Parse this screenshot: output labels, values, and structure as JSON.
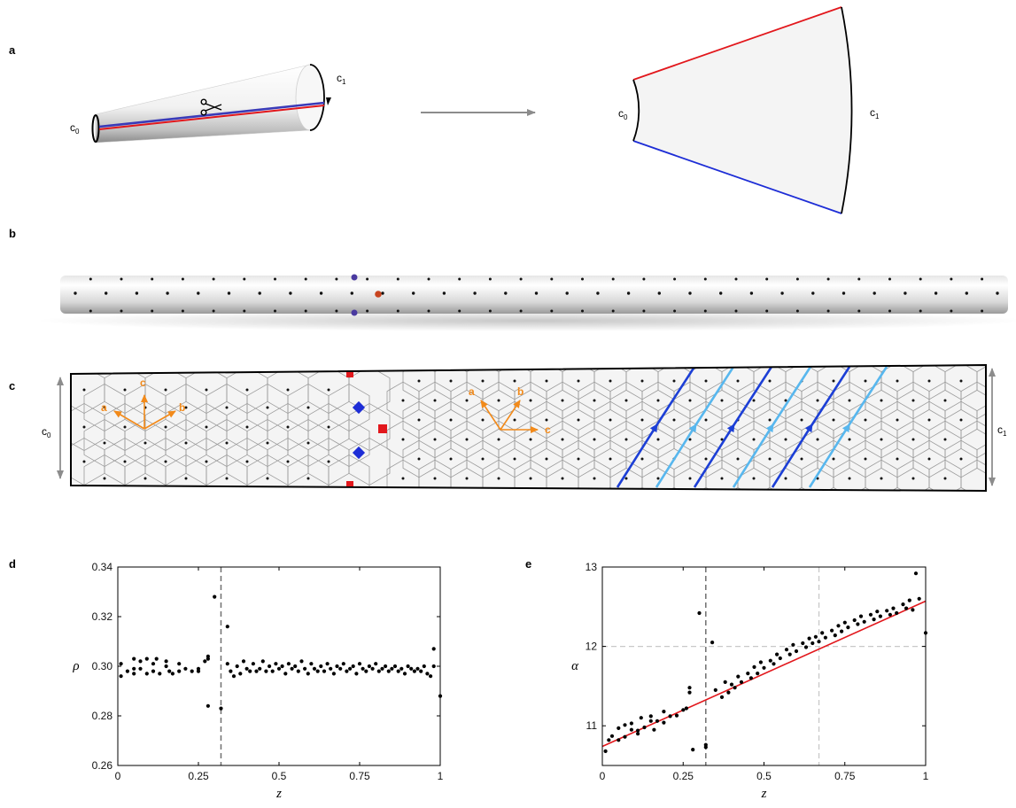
{
  "panel_labels": [
    "a",
    "b",
    "c",
    "d",
    "e"
  ],
  "panel_a": {
    "label_start": "c",
    "label_end": "c",
    "sub_start": "0",
    "sub_end": "1"
  },
  "panel_c": {
    "c0_base": "c",
    "c0_sub": "0",
    "c1_base": "c",
    "c1_sub": "1",
    "lattice_vectors_left": [
      "a",
      "b",
      "c"
    ],
    "lattice_vectors_right": [
      "a",
      "b",
      "c"
    ],
    "colors": {
      "orange": "#f28a1a",
      "dark_blue": "#1c3fd6",
      "light_blue": "#58b7ee",
      "defect_red": "#e2171c",
      "defect_blue": "#1d2dd6"
    }
  },
  "chart_data": [
    {
      "type": "scatter",
      "panel": "d",
      "xlabel": "z",
      "ylabel": "ρ",
      "xlim": [
        0,
        1
      ],
      "ylim": [
        0.26,
        0.34
      ],
      "xticks": [
        "0",
        "0.25",
        "0.5",
        "0.75",
        "1"
      ],
      "yticks": [
        "0.26",
        "0.28",
        "0.30",
        "0.32",
        "0.34"
      ],
      "vline": 0.32,
      "points": [
        [
          0.01,
          0.301
        ],
        [
          0.01,
          0.296
        ],
        [
          0.03,
          0.298
        ],
        [
          0.05,
          0.303
        ],
        [
          0.05,
          0.299
        ],
        [
          0.05,
          0.297
        ],
        [
          0.07,
          0.302
        ],
        [
          0.07,
          0.299
        ],
        [
          0.09,
          0.303
        ],
        [
          0.09,
          0.297
        ],
        [
          0.11,
          0.301
        ],
        [
          0.11,
          0.298
        ],
        [
          0.12,
          0.303
        ],
        [
          0.13,
          0.297
        ],
        [
          0.15,
          0.302
        ],
        [
          0.15,
          0.3
        ],
        [
          0.16,
          0.298
        ],
        [
          0.17,
          0.297
        ],
        [
          0.19,
          0.301
        ],
        [
          0.19,
          0.298
        ],
        [
          0.21,
          0.299
        ],
        [
          0.23,
          0.298
        ],
        [
          0.25,
          0.299
        ],
        [
          0.25,
          0.298
        ],
        [
          0.27,
          0.302
        ],
        [
          0.28,
          0.304
        ],
        [
          0.28,
          0.303
        ],
        [
          0.28,
          0.284
        ],
        [
          0.3,
          0.328
        ],
        [
          0.32,
          0.283
        ],
        [
          0.34,
          0.316
        ],
        [
          0.34,
          0.301
        ],
        [
          0.35,
          0.298
        ],
        [
          0.36,
          0.296
        ],
        [
          0.37,
          0.3
        ],
        [
          0.38,
          0.297
        ],
        [
          0.39,
          0.302
        ],
        [
          0.4,
          0.299
        ],
        [
          0.41,
          0.298
        ],
        [
          0.42,
          0.301
        ],
        [
          0.43,
          0.298
        ],
        [
          0.44,
          0.299
        ],
        [
          0.45,
          0.302
        ],
        [
          0.46,
          0.298
        ],
        [
          0.47,
          0.3
        ],
        [
          0.48,
          0.298
        ],
        [
          0.49,
          0.301
        ],
        [
          0.5,
          0.299
        ],
        [
          0.51,
          0.3
        ],
        [
          0.52,
          0.297
        ],
        [
          0.53,
          0.301
        ],
        [
          0.54,
          0.299
        ],
        [
          0.55,
          0.3
        ],
        [
          0.56,
          0.298
        ],
        [
          0.57,
          0.302
        ],
        [
          0.58,
          0.299
        ],
        [
          0.59,
          0.297
        ],
        [
          0.6,
          0.301
        ],
        [
          0.61,
          0.299
        ],
        [
          0.62,
          0.298
        ],
        [
          0.63,
          0.3
        ],
        [
          0.64,
          0.298
        ],
        [
          0.65,
          0.301
        ],
        [
          0.66,
          0.299
        ],
        [
          0.67,
          0.297
        ],
        [
          0.68,
          0.3
        ],
        [
          0.69,
          0.299
        ],
        [
          0.7,
          0.301
        ],
        [
          0.71,
          0.298
        ],
        [
          0.72,
          0.299
        ],
        [
          0.73,
          0.3
        ],
        [
          0.74,
          0.297
        ],
        [
          0.75,
          0.301
        ],
        [
          0.76,
          0.299
        ],
        [
          0.77,
          0.298
        ],
        [
          0.78,
          0.3
        ],
        [
          0.79,
          0.299
        ],
        [
          0.8,
          0.301
        ],
        [
          0.81,
          0.298
        ],
        [
          0.82,
          0.299
        ],
        [
          0.83,
          0.3
        ],
        [
          0.84,
          0.298
        ],
        [
          0.85,
          0.299
        ],
        [
          0.86,
          0.3
        ],
        [
          0.87,
          0.298
        ],
        [
          0.88,
          0.299
        ],
        [
          0.89,
          0.297
        ],
        [
          0.9,
          0.3
        ],
        [
          0.91,
          0.299
        ],
        [
          0.92,
          0.298
        ],
        [
          0.93,
          0.299
        ],
        [
          0.94,
          0.298
        ],
        [
          0.95,
          0.3
        ],
        [
          0.96,
          0.297
        ],
        [
          0.97,
          0.296
        ],
        [
          0.98,
          0.307
        ],
        [
          0.98,
          0.3
        ],
        [
          1.0,
          0.288
        ]
      ]
    },
    {
      "type": "scatter",
      "panel": "e",
      "xlabel": "z",
      "ylabel": "α",
      "xlim": [
        0,
        1
      ],
      "ylim": [
        10.5,
        13
      ],
      "xticks": [
        "0",
        "0.25",
        "0.5",
        "0.75",
        "1"
      ],
      "yticks": [
        "11",
        "12",
        "13"
      ],
      "vline": 0.32,
      "vline_light": 0.67,
      "hline_light": 12.0,
      "fit_line": [
        [
          0,
          10.74
        ],
        [
          1,
          12.57
        ]
      ],
      "points": [
        [
          0.01,
          10.68
        ],
        [
          0.02,
          10.82
        ],
        [
          0.03,
          10.87
        ],
        [
          0.05,
          10.82
        ],
        [
          0.05,
          10.97
        ],
        [
          0.07,
          10.86
        ],
        [
          0.07,
          11.01
        ],
        [
          0.09,
          10.95
        ],
        [
          0.09,
          11.03
        ],
        [
          0.11,
          10.9
        ],
        [
          0.11,
          10.94
        ],
        [
          0.12,
          11.1
        ],
        [
          0.13,
          10.98
        ],
        [
          0.15,
          11.12
        ],
        [
          0.15,
          11.06
        ],
        [
          0.16,
          10.95
        ],
        [
          0.17,
          11.06
        ],
        [
          0.19,
          11.18
        ],
        [
          0.19,
          11.04
        ],
        [
          0.21,
          11.12
        ],
        [
          0.23,
          11.13
        ],
        [
          0.25,
          11.2
        ],
        [
          0.26,
          11.22
        ],
        [
          0.27,
          11.48
        ],
        [
          0.27,
          11.42
        ],
        [
          0.28,
          10.7
        ],
        [
          0.3,
          12.42
        ],
        [
          0.32,
          10.76
        ],
        [
          0.32,
          10.73
        ],
        [
          0.34,
          12.05
        ],
        [
          0.35,
          11.45
        ],
        [
          0.37,
          11.36
        ],
        [
          0.38,
          11.55
        ],
        [
          0.39,
          11.42
        ],
        [
          0.4,
          11.52
        ],
        [
          0.41,
          11.48
        ],
        [
          0.42,
          11.62
        ],
        [
          0.43,
          11.55
        ],
        [
          0.45,
          11.66
        ],
        [
          0.46,
          11.6
        ],
        [
          0.47,
          11.74
        ],
        [
          0.48,
          11.66
        ],
        [
          0.49,
          11.8
        ],
        [
          0.5,
          11.73
        ],
        [
          0.52,
          11.82
        ],
        [
          0.53,
          11.78
        ],
        [
          0.54,
          11.9
        ],
        [
          0.55,
          11.85
        ],
        [
          0.57,
          11.96
        ],
        [
          0.58,
          11.9
        ],
        [
          0.59,
          12.02
        ],
        [
          0.6,
          11.94
        ],
        [
          0.62,
          12.04
        ],
        [
          0.63,
          11.99
        ],
        [
          0.64,
          12.1
        ],
        [
          0.65,
          12.04
        ],
        [
          0.66,
          12.12
        ],
        [
          0.67,
          12.06
        ],
        [
          0.68,
          12.17
        ],
        [
          0.69,
          12.11
        ],
        [
          0.71,
          12.2
        ],
        [
          0.72,
          12.14
        ],
        [
          0.73,
          12.26
        ],
        [
          0.74,
          12.19
        ],
        [
          0.75,
          12.3
        ],
        [
          0.76,
          12.24
        ],
        [
          0.78,
          12.33
        ],
        [
          0.79,
          12.28
        ],
        [
          0.8,
          12.38
        ],
        [
          0.81,
          12.31
        ],
        [
          0.83,
          12.4
        ],
        [
          0.84,
          12.34
        ],
        [
          0.85,
          12.44
        ],
        [
          0.86,
          12.38
        ],
        [
          0.88,
          12.45
        ],
        [
          0.89,
          12.4
        ],
        [
          0.9,
          12.48
        ],
        [
          0.91,
          12.42
        ],
        [
          0.93,
          12.53
        ],
        [
          0.94,
          12.48
        ],
        [
          0.95,
          12.58
        ],
        [
          0.96,
          12.46
        ],
        [
          0.97,
          12.92
        ],
        [
          0.98,
          12.6
        ],
        [
          1.0,
          12.17
        ]
      ]
    }
  ]
}
